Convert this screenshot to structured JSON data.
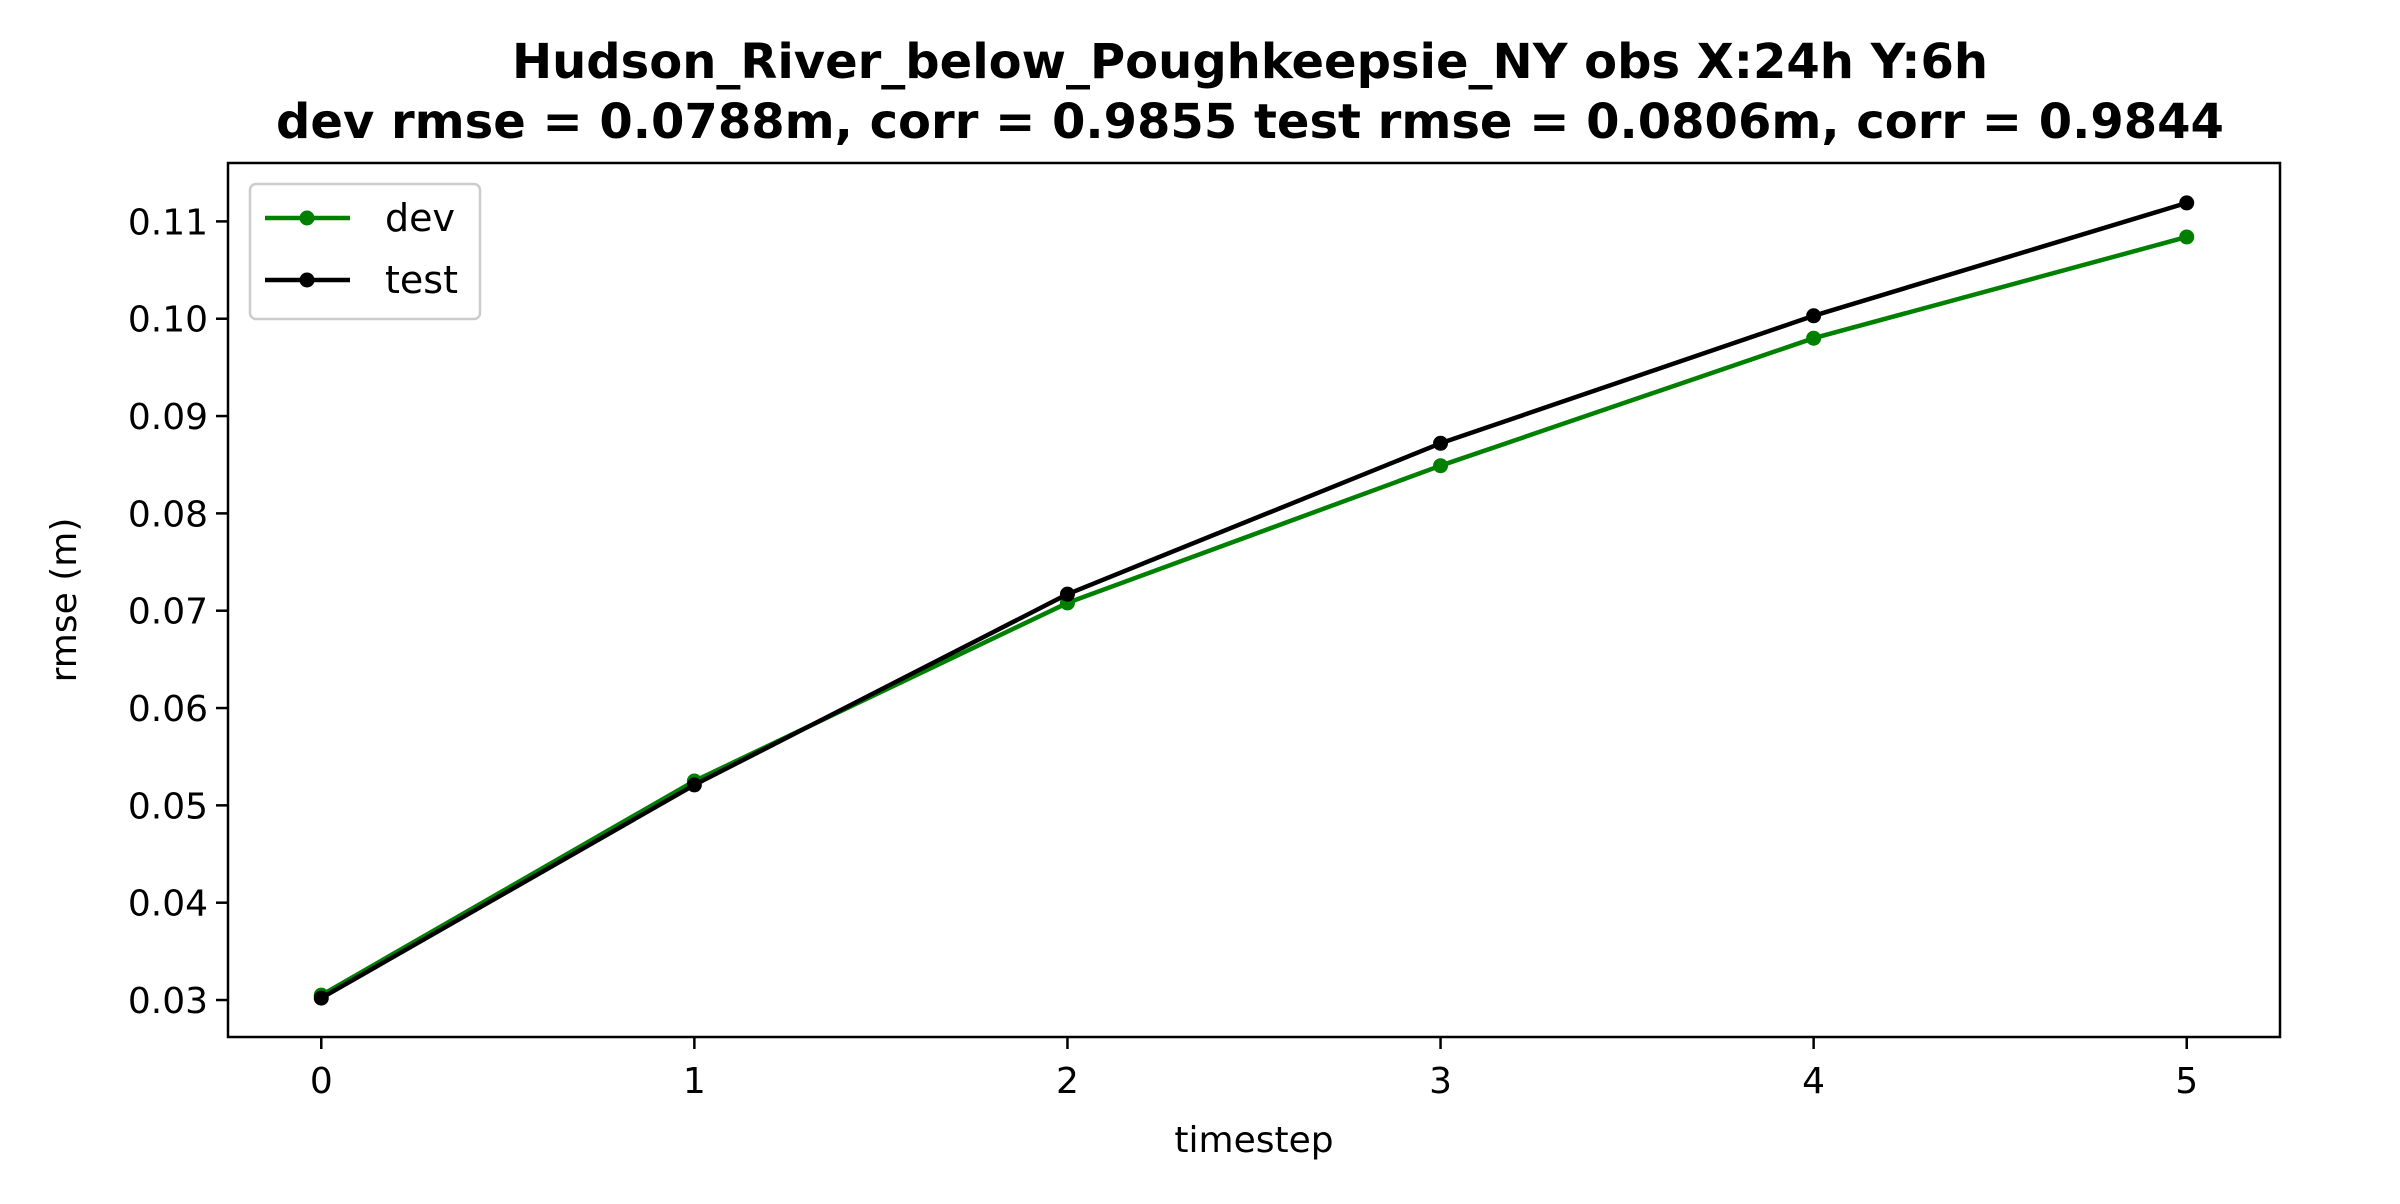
{
  "chart_data": {
    "type": "line",
    "title": "Hudson_River_below_Poughkeepsie_NY   obs   X:24h   Y:6h",
    "subtitle": "dev rmse = 0.0788m, corr = 0.9855   test rmse = 0.0806m, corr = 0.9844",
    "xlabel": "timestep",
    "ylabel": "rmse (m)",
    "x": [
      0,
      1,
      2,
      3,
      4,
      5
    ],
    "xlim": [
      -0.25,
      5.25
    ],
    "ylim": [
      0.0262,
      0.116
    ],
    "xticks": [
      "0",
      "1",
      "2",
      "3",
      "4",
      "5"
    ],
    "yticks": [
      "0.03",
      "0.04",
      "0.05",
      "0.06",
      "0.07",
      "0.08",
      "0.09",
      "0.10",
      "0.11"
    ],
    "grid": false,
    "legend_position": "top-left",
    "series": [
      {
        "name": "dev",
        "color": "#008000",
        "values": [
          0.0305,
          0.0525,
          0.0708,
          0.0849,
          0.098,
          0.1084
        ]
      },
      {
        "name": "test",
        "color": "#000000",
        "values": [
          0.0302,
          0.0521,
          0.0717,
          0.0872,
          0.1003,
          0.1119
        ]
      }
    ]
  }
}
